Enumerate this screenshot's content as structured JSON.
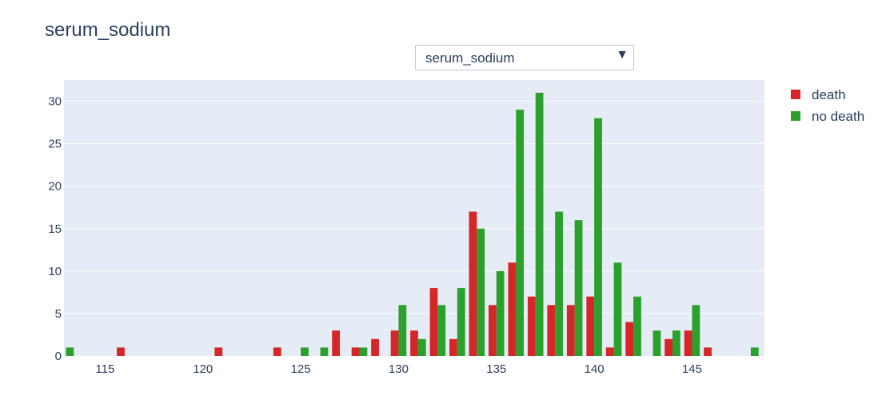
{
  "title": "serum_sodium",
  "dropdown": {
    "selected": "serum_sodium"
  },
  "colors": {
    "death": "#d62728",
    "no_death": "#2ca02c",
    "plot_bg": "#e5ecf6",
    "grid": "#ffffff"
  },
  "chart_data": {
    "type": "bar",
    "title": "serum_sodium",
    "xlabel": "",
    "ylabel": "",
    "xlim": [
      112.9,
      148.7
    ],
    "ylim": [
      0,
      32.5
    ],
    "x_ticks": [
      115,
      120,
      125,
      130,
      135,
      140,
      145
    ],
    "y_ticks": [
      0,
      5,
      10,
      15,
      20,
      25,
      30
    ],
    "grid": true,
    "legend_position": "right",
    "bins": [
      113,
      114,
      115,
      116,
      117,
      118,
      119,
      120,
      121,
      122,
      123,
      124,
      125,
      126,
      127,
      128,
      129,
      130,
      131,
      132,
      133,
      134,
      135,
      136,
      137,
      138,
      139,
      140,
      141,
      142,
      143,
      144,
      145,
      146,
      147,
      148
    ],
    "series": [
      {
        "name": "death",
        "values": [
          0,
          0,
          0,
          1,
          0,
          0,
          0,
          0,
          1,
          0,
          0,
          1,
          0,
          0,
          3,
          1,
          2,
          3,
          3,
          8,
          2,
          17,
          6,
          11,
          7,
          6,
          6,
          7,
          1,
          4,
          0,
          2,
          3,
          1,
          0,
          0
        ]
      },
      {
        "name": "no death",
        "values": [
          1,
          0,
          0,
          0,
          0,
          0,
          0,
          0,
          0,
          0,
          0,
          0,
          1,
          1,
          0,
          1,
          0,
          6,
          2,
          6,
          8,
          15,
          10,
          29,
          31,
          17,
          16,
          28,
          11,
          7,
          3,
          3,
          6,
          0,
          0,
          1
        ]
      }
    ]
  }
}
